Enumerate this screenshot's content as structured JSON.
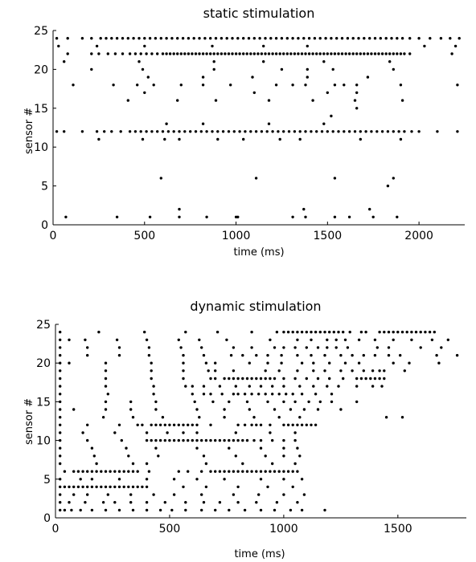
{
  "chart_data": [
    {
      "type": "scatter",
      "title": "static stimulation",
      "xlabel": "time (ms)",
      "ylabel": "sensor #",
      "xlim": [
        0,
        2250
      ],
      "ylim": [
        0,
        25
      ],
      "x_ticks": [
        0,
        500,
        1000,
        1500,
        2000
      ],
      "y_ticks": [
        0,
        5,
        10,
        15,
        20,
        25
      ],
      "grid": false,
      "marker_color": "#000000",
      "rows": [
        {
          "sensor": 24,
          "times": [
            20,
            80,
            160,
            210,
            260,
            290,
            320,
            350,
            380,
            410,
            440,
            470,
            500,
            530,
            560,
            590,
            620,
            650,
            680,
            710,
            740,
            770,
            800,
            830,
            860,
            890,
            920,
            950,
            980,
            1010,
            1040,
            1070,
            1100,
            1130,
            1160,
            1190,
            1220,
            1250,
            1280,
            1310,
            1340,
            1370,
            1400,
            1430,
            1460,
            1490,
            1520,
            1550,
            1580,
            1610,
            1640,
            1670,
            1700,
            1730,
            1760,
            1790,
            1820,
            1850,
            1880,
            1910,
            1950,
            2000,
            2060,
            2120,
            2170,
            2220
          ]
        },
        {
          "sensor": 23,
          "times": [
            30,
            240,
            500,
            870,
            1150,
            1390,
            2030,
            2200
          ]
        },
        {
          "sensor": 22,
          "times": [
            80,
            210,
            250,
            300,
            340,
            380,
            420,
            450,
            480,
            510,
            540,
            570,
            600,
            620,
            640,
            660,
            680,
            700,
            720,
            740,
            760,
            780,
            800,
            820,
            840,
            860,
            880,
            900,
            920,
            940,
            960,
            980,
            1000,
            1020,
            1040,
            1060,
            1080,
            1100,
            1120,
            1140,
            1160,
            1180,
            1200,
            1220,
            1240,
            1260,
            1280,
            1300,
            1320,
            1340,
            1360,
            1380,
            1400,
            1420,
            1440,
            1460,
            1480,
            1500,
            1520,
            1540,
            1560,
            1580,
            1600,
            1620,
            1640,
            1660,
            1680,
            1700,
            1720,
            1740,
            1760,
            1780,
            1800,
            1820,
            1840,
            1860,
            1880,
            1900,
            1920,
            1950,
            2180
          ]
        },
        {
          "sensor": 21,
          "times": [
            60,
            470,
            880,
            1150,
            1480,
            1840
          ]
        },
        {
          "sensor": 20,
          "times": [
            210,
            490,
            880,
            1250,
            1390,
            1530,
            1860
          ]
        },
        {
          "sensor": 19,
          "times": [
            520,
            820,
            1090,
            1390,
            1720
          ]
        },
        {
          "sensor": 18,
          "times": [
            110,
            330,
            460,
            550,
            700,
            820,
            970,
            1220,
            1310,
            1380,
            1540,
            1590,
            1660,
            1900,
            2210
          ]
        },
        {
          "sensor": 17,
          "times": [
            500,
            1100,
            1500,
            1660
          ]
        },
        {
          "sensor": 16,
          "times": [
            410,
            680,
            890,
            1180,
            1420,
            1650,
            1910
          ]
        },
        {
          "sensor": 15,
          "times": [
            1660
          ]
        },
        {
          "sensor": 14,
          "times": [
            1520
          ]
        },
        {
          "sensor": 13,
          "times": [
            620,
            820,
            1180,
            1480
          ]
        },
        {
          "sensor": 12,
          "times": [
            20,
            60,
            160,
            240,
            280,
            320,
            370,
            420,
            450,
            480,
            510,
            540,
            570,
            600,
            630,
            660,
            690,
            720,
            750,
            780,
            810,
            840,
            870,
            900,
            930,
            960,
            990,
            1020,
            1050,
            1080,
            1110,
            1140,
            1170,
            1200,
            1230,
            1260,
            1290,
            1320,
            1350,
            1380,
            1410,
            1440,
            1470,
            1500,
            1530,
            1560,
            1590,
            1620,
            1650,
            1680,
            1710,
            1740,
            1770,
            1800,
            1830,
            1860,
            1890,
            1920,
            1960,
            2000,
            2100,
            2210
          ]
        },
        {
          "sensor": 11,
          "times": [
            250,
            490,
            610,
            690,
            900,
            1040,
            1240,
            1350,
            1680,
            1900
          ]
        },
        {
          "sensor": 6,
          "times": [
            590,
            1110,
            1540,
            1860
          ]
        },
        {
          "sensor": 5,
          "times": [
            1830
          ]
        },
        {
          "sensor": 2,
          "times": [
            690,
            1370,
            1730
          ]
        },
        {
          "sensor": 1,
          "times": [
            70,
            350,
            530,
            690,
            840,
            1000,
            1010,
            1310,
            1380,
            1540,
            1620,
            1750,
            1880
          ]
        }
      ]
    },
    {
      "type": "scatter",
      "title": "dynamic stimulation",
      "xlabel": "time (ms)",
      "ylabel": "sensor #",
      "xlim": [
        0,
        1800
      ],
      "ylim": [
        0,
        25
      ],
      "x_ticks": [
        0,
        500,
        1000,
        1500
      ],
      "y_ticks": [
        0,
        5,
        10,
        15,
        20,
        25
      ],
      "grid": false,
      "marker_color": "#000000",
      "rows": [
        {
          "sensor": 24,
          "times": [
            20,
            190,
            390,
            570,
            710,
            860,
            970,
            1000,
            1020,
            1040,
            1060,
            1080,
            1100,
            1120,
            1140,
            1160,
            1180,
            1200,
            1220,
            1240,
            1260,
            1290,
            1340,
            1360,
            1420,
            1440,
            1460,
            1480,
            1500,
            1520,
            1540,
            1560,
            1580,
            1600,
            1620,
            1640,
            1660
          ]
        },
        {
          "sensor": 23,
          "times": [
            20,
            60,
            130,
            270,
            400,
            540,
            630,
            750,
            940,
            1060,
            1120,
            1190,
            1230,
            1270,
            1330,
            1400,
            1480,
            1560,
            1650,
            1720
          ]
        },
        {
          "sensor": 22,
          "times": [
            20,
            140,
            280,
            410,
            550,
            640,
            780,
            860,
            960,
            1000,
            1050,
            1100,
            1150,
            1190,
            1230,
            1280,
            1410,
            1460,
            1600,
            1690
          ]
        },
        {
          "sensor": 21,
          "times": [
            20,
            140,
            280,
            410,
            560,
            650,
            770,
            820,
            880,
            930,
            990,
            1060,
            1120,
            1180,
            1250,
            1300,
            1350,
            1400,
            1460,
            1510,
            1670,
            1760
          ]
        },
        {
          "sensor": 20,
          "times": [
            20,
            60,
            220,
            420,
            560,
            660,
            700,
            850,
            930,
            990,
            1080,
            1130,
            1200,
            1270,
            1330,
            1480,
            1550,
            1680
          ]
        },
        {
          "sensor": 19,
          "times": [
            20,
            220,
            420,
            560,
            670,
            700,
            780,
            920,
            980,
            1060,
            1130,
            1180,
            1250,
            1300,
            1350,
            1390,
            1420,
            1440,
            1530
          ]
        },
        {
          "sensor": 18,
          "times": [
            20,
            220,
            420,
            560,
            680,
            700,
            740,
            760,
            780,
            800,
            820,
            840,
            860,
            880,
            900,
            920,
            940,
            960,
            1000,
            1050,
            1100,
            1150,
            1200,
            1260,
            1320,
            1340,
            1360,
            1380,
            1400,
            1420,
            1440
          ]
        },
        {
          "sensor": 17,
          "times": [
            20,
            220,
            430,
            570,
            600,
            650,
            720,
            790,
            850,
            900,
            950,
            1000,
            1070,
            1130,
            1190,
            1240,
            1320,
            1390,
            1430
          ]
        },
        {
          "sensor": 16,
          "times": [
            20,
            230,
            430,
            600,
            650,
            680,
            730,
            780,
            800,
            830,
            860,
            890,
            920,
            950,
            980,
            1010,
            1040,
            1080,
            1140,
            1210
          ]
        },
        {
          "sensor": 15,
          "times": [
            20,
            220,
            330,
            440,
            610,
            690,
            760,
            840,
            930,
            1000,
            1050,
            1110,
            1160,
            1210,
            1320
          ]
        },
        {
          "sensor": 14,
          "times": [
            20,
            80,
            220,
            330,
            440,
            620,
            740,
            850,
            960,
            1030,
            1090,
            1150,
            1250
          ]
        },
        {
          "sensor": 13,
          "times": [
            20,
            210,
            340,
            470,
            630,
            740,
            870,
            980,
            1070,
            1450,
            1520
          ]
        },
        {
          "sensor": 12,
          "times": [
            20,
            140,
            280,
            360,
            380,
            420,
            440,
            460,
            480,
            500,
            520,
            540,
            560,
            580,
            600,
            620,
            680,
            800,
            830,
            860,
            880,
            900,
            940,
            1000,
            1020,
            1040,
            1060,
            1080,
            1100,
            1120,
            1140
          ]
        },
        {
          "sensor": 11,
          "times": [
            20,
            120,
            260,
            400,
            490,
            560,
            620,
            790,
            940,
            1050
          ]
        },
        {
          "sensor": 10,
          "times": [
            20,
            140,
            290,
            400,
            420,
            440,
            460,
            480,
            500,
            520,
            540,
            560,
            580,
            600,
            620,
            640,
            660,
            680,
            700,
            720,
            740,
            760,
            780,
            800,
            820,
            840,
            870,
            900,
            950,
            1000,
            1050
          ]
        },
        {
          "sensor": 9,
          "times": [
            20,
            160,
            310,
            440,
            620,
            760,
            900,
            1000,
            1060
          ]
        },
        {
          "sensor": 8,
          "times": [
            20,
            170,
            320,
            450,
            650,
            790,
            920,
            1000,
            1070
          ]
        },
        {
          "sensor": 7,
          "times": [
            20,
            180,
            340,
            400,
            660,
            820,
            950,
            1050
          ]
        },
        {
          "sensor": 6,
          "times": [
            40,
            80,
            100,
            120,
            140,
            160,
            180,
            200,
            220,
            240,
            260,
            280,
            300,
            320,
            340,
            360,
            410,
            540,
            580,
            640,
            680,
            700,
            720,
            740,
            760,
            780,
            800,
            820,
            840,
            860,
            880,
            900,
            920,
            940,
            960,
            980,
            1000,
            1020,
            1040,
            1060
          ]
        },
        {
          "sensor": 5,
          "times": [
            20,
            110,
            160,
            280,
            400,
            520,
            620,
            740,
            900,
            1000,
            1080
          ]
        },
        {
          "sensor": 4,
          "times": [
            20,
            40,
            60,
            80,
            100,
            120,
            140,
            160,
            180,
            200,
            220,
            240,
            260,
            280,
            300,
            320,
            340,
            360,
            380,
            400,
            560,
            660,
            800,
            930,
            1040
          ]
        },
        {
          "sensor": 3,
          "times": [
            20,
            80,
            140,
            230,
            330,
            430,
            520,
            640,
            780,
            890,
            1000,
            1090
          ]
        },
        {
          "sensor": 2,
          "times": [
            20,
            60,
            130,
            210,
            260,
            330,
            400,
            480,
            570,
            650,
            720,
            800,
            880,
            970,
            1060
          ]
        },
        {
          "sensor": 1,
          "times": [
            20,
            40,
            70,
            110,
            160,
            220,
            280,
            340,
            400,
            460,
            510,
            570,
            640,
            700,
            760,
            830,
            900,
            960,
            1030,
            1080,
            1180
          ]
        }
      ]
    }
  ]
}
